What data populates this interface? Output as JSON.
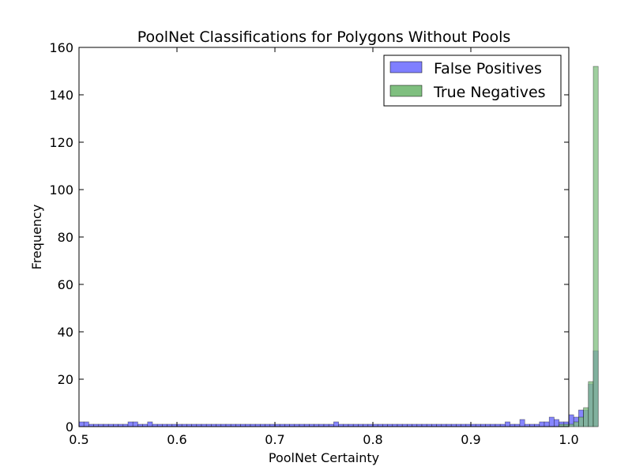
{
  "chart_data": {
    "type": "bar",
    "title": "PoolNet Classifications for Polygons Without Pools",
    "xlabel": "PoolNet Certainty",
    "ylabel": "Frequency",
    "xlim": [
      0.5,
      1.0
    ],
    "ylim": [
      0,
      160
    ],
    "x_ticks": [
      "0.5",
      "0.6",
      "0.7",
      "0.8",
      "0.9",
      "1.0"
    ],
    "y_ticks": [
      "0",
      "20",
      "40",
      "60",
      "80",
      "100",
      "120",
      "140",
      "160"
    ],
    "grid": false,
    "legend_position": "top-right",
    "bin_width": 0.005,
    "bin_start": 0.5,
    "series": [
      {
        "name": "False Positives",
        "color": "#7f7fff",
        "values": [
          2,
          2,
          1,
          1,
          1,
          1,
          1,
          1,
          1,
          1,
          2,
          2,
          1,
          1,
          2,
          1,
          1,
          1,
          1,
          1,
          1,
          1,
          1,
          1,
          1,
          1,
          1,
          1,
          1,
          1,
          1,
          1,
          1,
          1,
          1,
          1,
          1,
          1,
          1,
          1,
          1,
          1,
          1,
          1,
          1,
          1,
          1,
          1,
          1,
          1,
          1,
          1,
          2,
          1,
          1,
          1,
          1,
          1,
          1,
          1,
          1,
          1,
          1,
          1,
          1,
          1,
          1,
          1,
          1,
          1,
          1,
          1,
          1,
          1,
          1,
          1,
          1,
          1,
          1,
          1,
          1,
          1,
          1,
          1,
          1,
          1,
          1,
          2,
          1,
          1,
          3,
          1,
          1,
          1,
          2,
          2,
          4,
          3,
          2,
          2,
          5,
          4,
          7,
          7,
          18,
          32
        ]
      },
      {
        "name": "True Negatives",
        "color": "#7fbf7f",
        "values": [
          0,
          0,
          0,
          0,
          0,
          0,
          0,
          0,
          0,
          0,
          0,
          0,
          0,
          0,
          0,
          0,
          0,
          0,
          0,
          0,
          0,
          0,
          0,
          0,
          0,
          0,
          0,
          0,
          0,
          0,
          0,
          0,
          0,
          0,
          0,
          0,
          0,
          0,
          0,
          0,
          0,
          0,
          0,
          0,
          0,
          0,
          0,
          0,
          0,
          0,
          0,
          0,
          0,
          0,
          0,
          0,
          0,
          0,
          0,
          0,
          0,
          0,
          0,
          0,
          0,
          0,
          0,
          0,
          0,
          0,
          0,
          0,
          0,
          0,
          0,
          0,
          0,
          0,
          0,
          0,
          0,
          0,
          0,
          0,
          0,
          0,
          0,
          0,
          0,
          0,
          0,
          0,
          0,
          0,
          0,
          0,
          0,
          0,
          1,
          1,
          1,
          2,
          4,
          8,
          19,
          152
        ]
      }
    ]
  }
}
